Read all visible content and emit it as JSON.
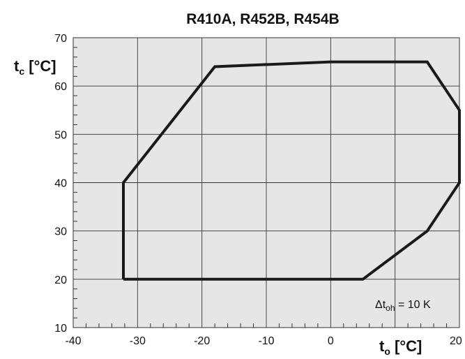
{
  "chart_data": {
    "type": "line",
    "title": "R410A, R452B, R454B",
    "ylabel_main": "t",
    "ylabel_sub": "c",
    "ylabel_unit": " [°C]",
    "xlabel_main": "t",
    "xlabel_sub": "o",
    "xlabel_unit": " [°C]",
    "xlim": [
      -40,
      20
    ],
    "ylim": [
      10,
      70
    ],
    "xticks": [
      -40,
      -30,
      -20,
      -10,
      0,
      10,
      20
    ],
    "xtick_labels": [
      "-40",
      "-30",
      "-20",
      "-10",
      "0",
      "",
      "20"
    ],
    "yticks": [
      10,
      20,
      30,
      40,
      50,
      60,
      70
    ],
    "ytick_labels": [
      "10",
      "20",
      "30",
      "40",
      "50",
      "60",
      "70"
    ],
    "grid": true,
    "background": "#e6e6e6",
    "line_color": "#1a1a1a",
    "series": [
      {
        "x": [
          -32.2,
          -32.2,
          -18,
          0,
          15,
          20,
          20,
          15,
          5,
          -32.2
        ],
        "y": [
          20,
          40,
          64,
          65,
          65,
          55,
          40,
          30,
          20,
          20
        ]
      }
    ],
    "annotation": {
      "delta": "Δt",
      "sub": "oh",
      "text": " = 10 K"
    }
  }
}
